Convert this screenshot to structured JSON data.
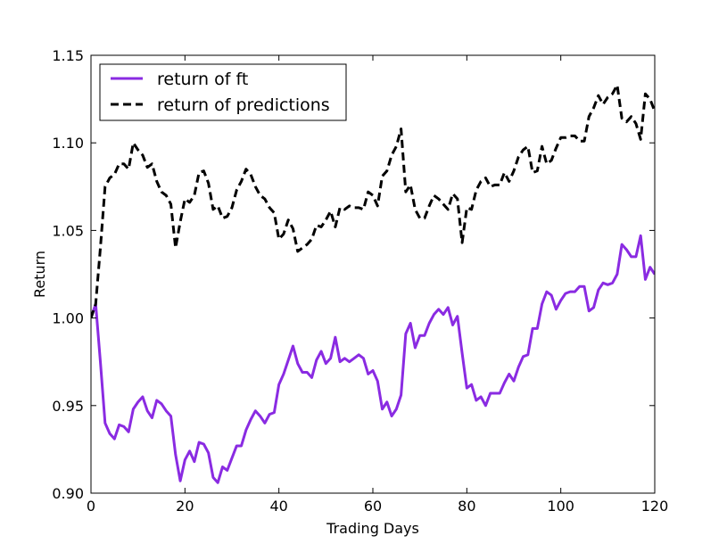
{
  "chart_data": {
    "type": "line",
    "xlabel": "Trading Days",
    "ylabel": "Return",
    "xlim": [
      0,
      120
    ],
    "ylim": [
      0.9,
      1.15
    ],
    "xticks": [
      0,
      20,
      40,
      60,
      80,
      100,
      120
    ],
    "xtick_labels": [
      "0",
      "20",
      "40",
      "60",
      "80",
      "100",
      "120"
    ],
    "yticks": [
      0.9,
      0.95,
      1.0,
      1.05,
      1.1,
      1.15
    ],
    "ytick_labels": [
      "0.90",
      "0.95",
      "1.00",
      "1.05",
      "1.10",
      "1.15"
    ],
    "grid": false,
    "legend_position": "upper-left",
    "series": [
      {
        "name": "return of ft",
        "color": "#8a2be2",
        "style": "solid",
        "x": [
          0,
          1,
          2,
          3,
          4,
          5,
          6,
          7,
          8,
          9,
          10,
          11,
          12,
          13,
          14,
          15,
          16,
          17,
          18,
          19,
          20,
          21,
          22,
          23,
          24,
          25,
          26,
          27,
          28,
          29,
          30,
          31,
          32,
          33,
          34,
          35,
          36,
          37,
          38,
          39,
          40,
          41,
          42,
          43,
          44,
          45,
          46,
          47,
          48,
          49,
          50,
          51,
          52,
          53,
          54,
          55,
          56,
          57,
          58,
          59,
          60,
          61,
          62,
          63,
          64,
          65,
          66,
          67,
          68,
          69,
          70,
          71,
          72,
          73,
          74,
          75,
          76,
          77,
          78,
          79,
          80,
          81,
          82,
          83,
          84,
          85,
          86,
          87,
          88,
          89,
          90,
          91,
          92,
          93,
          94,
          95,
          96,
          97,
          98,
          99,
          100,
          101,
          102,
          103,
          104,
          105,
          106,
          107,
          108,
          109,
          110,
          111,
          112,
          113,
          114,
          115,
          116,
          117,
          118,
          119,
          120
        ],
        "values": [
          1.0,
          1.008,
          0.975,
          0.94,
          0.934,
          0.931,
          0.939,
          0.938,
          0.935,
          0.948,
          0.952,
          0.955,
          0.947,
          0.943,
          0.953,
          0.951,
          0.947,
          0.944,
          0.922,
          0.907,
          0.919,
          0.924,
          0.918,
          0.929,
          0.928,
          0.923,
          0.909,
          0.906,
          0.915,
          0.913,
          0.92,
          0.927,
          0.927,
          0.936,
          0.942,
          0.947,
          0.944,
          0.94,
          0.945,
          0.946,
          0.962,
          0.968,
          0.976,
          0.984,
          0.974,
          0.969,
          0.969,
          0.966,
          0.976,
          0.981,
          0.974,
          0.977,
          0.989,
          0.975,
          0.977,
          0.975,
          0.977,
          0.979,
          0.977,
          0.968,
          0.97,
          0.964,
          0.948,
          0.952,
          0.944,
          0.948,
          0.956,
          0.991,
          0.997,
          0.983,
          0.99,
          0.99,
          0.997,
          1.002,
          1.005,
          1.002,
          1.006,
          0.996,
          1.001,
          0.98,
          0.96,
          0.962,
          0.953,
          0.955,
          0.95,
          0.957,
          0.957,
          0.957,
          0.963,
          0.968,
          0.964,
          0.972,
          0.978,
          0.979,
          0.994,
          0.994,
          1.008,
          1.015,
          1.013,
          1.005,
          1.01,
          1.014,
          1.015,
          1.015,
          1.018,
          1.018,
          1.004,
          1.006,
          1.016,
          1.02,
          1.019,
          1.02,
          1.025,
          1.042,
          1.039,
          1.035,
          1.035,
          1.047,
          1.022,
          1.029,
          1.025
        ]
      },
      {
        "name": "return of predictions",
        "color": "#000000",
        "style": "dashed",
        "x": [
          0,
          1,
          2,
          3,
          4,
          5,
          6,
          7,
          8,
          9,
          10,
          11,
          12,
          13,
          14,
          15,
          16,
          17,
          18,
          19,
          20,
          21,
          22,
          23,
          24,
          25,
          26,
          27,
          28,
          29,
          30,
          31,
          32,
          33,
          34,
          35,
          36,
          37,
          38,
          39,
          40,
          41,
          42,
          43,
          44,
          45,
          46,
          47,
          48,
          49,
          50,
          51,
          52,
          53,
          54,
          55,
          56,
          57,
          58,
          59,
          60,
          61,
          62,
          63,
          64,
          65,
          66,
          67,
          68,
          69,
          70,
          71,
          72,
          73,
          74,
          75,
          76,
          77,
          78,
          79,
          80,
          81,
          82,
          83,
          84,
          85,
          86,
          87,
          88,
          89,
          90,
          91,
          92,
          93,
          94,
          95,
          96,
          97,
          98,
          99,
          100,
          101,
          102,
          103,
          104,
          105,
          106,
          107,
          108,
          109,
          110,
          111,
          112,
          113,
          114,
          115,
          116,
          117,
          118,
          119,
          120
        ],
        "values": [
          1.0,
          1.008,
          1.04,
          1.075,
          1.08,
          1.082,
          1.088,
          1.088,
          1.085,
          1.1,
          1.096,
          1.093,
          1.086,
          1.088,
          1.078,
          1.072,
          1.07,
          1.065,
          1.04,
          1.055,
          1.068,
          1.066,
          1.07,
          1.083,
          1.084,
          1.077,
          1.062,
          1.064,
          1.057,
          1.058,
          1.063,
          1.073,
          1.078,
          1.085,
          1.082,
          1.075,
          1.07,
          1.068,
          1.063,
          1.06,
          1.045,
          1.048,
          1.056,
          1.051,
          1.038,
          1.04,
          1.042,
          1.045,
          1.053,
          1.052,
          1.056,
          1.061,
          1.052,
          1.063,
          1.062,
          1.064,
          1.063,
          1.063,
          1.062,
          1.072,
          1.07,
          1.064,
          1.081,
          1.084,
          1.093,
          1.098,
          1.108,
          1.072,
          1.076,
          1.062,
          1.057,
          1.057,
          1.064,
          1.07,
          1.068,
          1.065,
          1.062,
          1.071,
          1.068,
          1.043,
          1.063,
          1.062,
          1.073,
          1.078,
          1.08,
          1.075,
          1.076,
          1.076,
          1.083,
          1.078,
          1.084,
          1.092,
          1.096,
          1.098,
          1.083,
          1.084,
          1.098,
          1.088,
          1.09,
          1.097,
          1.103,
          1.103,
          1.104,
          1.104,
          1.101,
          1.101,
          1.115,
          1.12,
          1.127,
          1.122,
          1.126,
          1.128,
          1.133,
          1.114,
          1.112,
          1.115,
          1.111,
          1.102,
          1.128,
          1.125,
          1.118
        ]
      }
    ]
  }
}
